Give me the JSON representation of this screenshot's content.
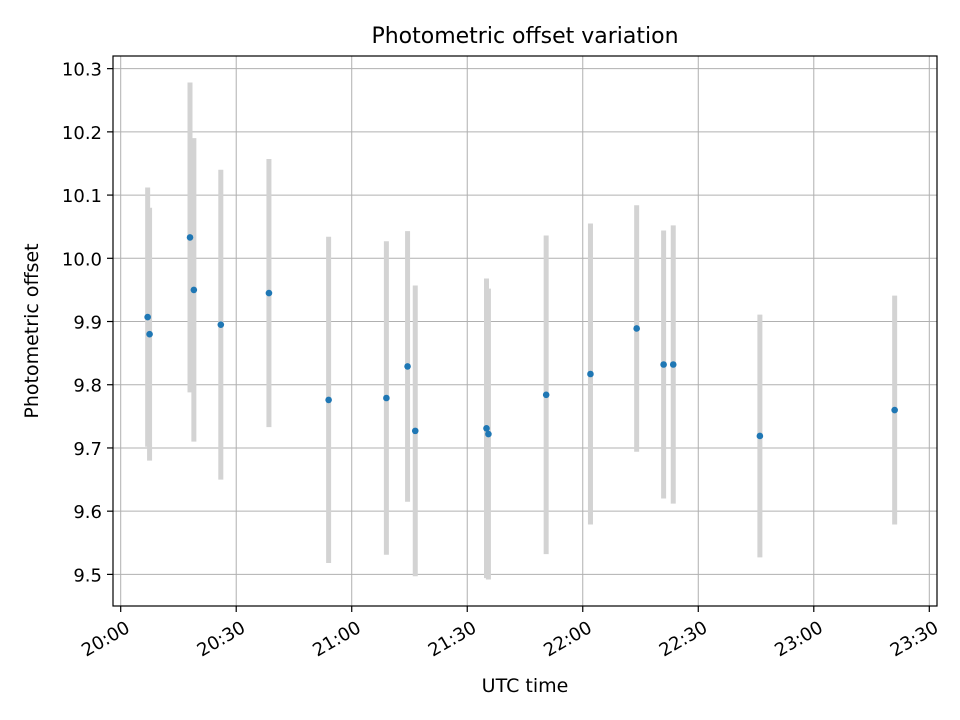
{
  "chart_data": {
    "type": "scatter",
    "title": "Photometric offset variation",
    "xlabel": "UTC time",
    "ylabel": "Photometric offset",
    "xlim": [
      "19:58",
      "23:32"
    ],
    "ylim": [
      9.45,
      10.32
    ],
    "x_ticks": [
      "20:00",
      "20:30",
      "21:00",
      "21:30",
      "22:00",
      "22:30",
      "23:00",
      "23:30"
    ],
    "y_ticks": [
      "9.5",
      "9.6",
      "9.7",
      "9.8",
      "9.9",
      "10.0",
      "10.1",
      "10.2",
      "10.3"
    ],
    "grid": true,
    "marker_color": "#1f77b4",
    "errorbar_color": "#d3d3d3",
    "points": [
      {
        "time": "20:07",
        "y": 9.907,
        "yerr": 0.205
      },
      {
        "time": "20:07.5",
        "y": 9.88,
        "yerr": 0.2
      },
      {
        "time": "20:18",
        "y": 10.033,
        "yerr": 0.245
      },
      {
        "time": "20:19",
        "y": 9.95,
        "yerr": 0.24
      },
      {
        "time": "20:26",
        "y": 9.895,
        "yerr": 0.245
      },
      {
        "time": "20:38.5",
        "y": 9.945,
        "yerr": 0.212
      },
      {
        "time": "20:54",
        "y": 9.776,
        "yerr": 0.258
      },
      {
        "time": "21:09",
        "y": 9.779,
        "yerr": 0.248
      },
      {
        "time": "21:14.5",
        "y": 9.829,
        "yerr": 0.214
      },
      {
        "time": "21:16.5",
        "y": 9.727,
        "yerr": 0.23
      },
      {
        "time": "21:35",
        "y": 9.731,
        "yerr": 0.237
      },
      {
        "time": "21:35.5",
        "y": 9.722,
        "yerr": 0.23
      },
      {
        "time": "21:50.5",
        "y": 9.784,
        "yerr": 0.252
      },
      {
        "time": "22:02",
        "y": 9.817,
        "yerr": 0.238
      },
      {
        "time": "22:14",
        "y": 9.889,
        "yerr": 0.195
      },
      {
        "time": "22:21",
        "y": 9.832,
        "yerr": 0.212
      },
      {
        "time": "22:23.5",
        "y": 9.832,
        "yerr": 0.22
      },
      {
        "time": "22:46",
        "y": 9.719,
        "yerr": 0.192
      },
      {
        "time": "23:21",
        "y": 9.76,
        "yerr": 0.181
      }
    ]
  }
}
